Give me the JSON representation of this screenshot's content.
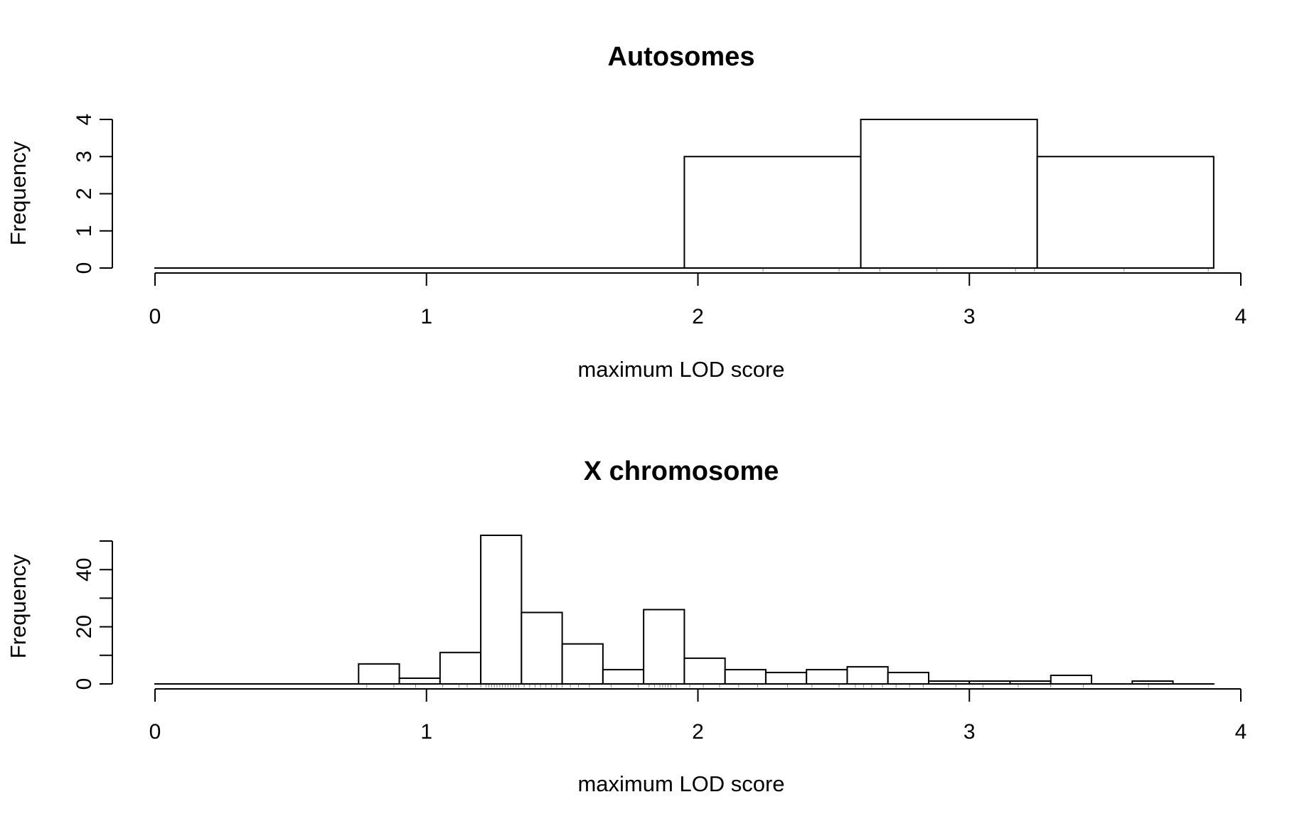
{
  "chart_data": [
    {
      "type": "bar",
      "title": "Autosomes",
      "xlabel": "maximum LOD score",
      "ylabel": "Frequency",
      "xlim": [
        0,
        4
      ],
      "ylim": [
        0,
        4
      ],
      "xticks": [
        0,
        1,
        2,
        3,
        4
      ],
      "yticks": [
        0,
        1,
        2,
        3,
        4
      ],
      "bin_edges": [
        0,
        0.65,
        1.3,
        1.95,
        2.6,
        3.25,
        3.9
      ],
      "values": [
        0,
        0,
        0,
        3,
        4,
        3
      ],
      "rug": [
        2.24,
        2.52,
        2.67,
        2.88,
        3.17,
        3.24,
        3.57,
        3.88
      ]
    },
    {
      "type": "bar",
      "title": "X chromosome",
      "xlabel": "maximum LOD score",
      "ylabel": "Frequency",
      "xlim": [
        0,
        4
      ],
      "ylim": [
        0,
        50
      ],
      "xticks": [
        0,
        1,
        2,
        3,
        4
      ],
      "yticks": [
        0,
        10,
        20,
        30,
        40,
        50
      ],
      "ytick_labels": [
        "0",
        "",
        "20",
        "",
        "40",
        ""
      ],
      "bin_edges": [
        0,
        0.15,
        0.3,
        0.45,
        0.6,
        0.75,
        0.9,
        1.05,
        1.2,
        1.35,
        1.5,
        1.65,
        1.8,
        1.95,
        2.1,
        2.25,
        2.4,
        2.55,
        2.7,
        2.85,
        3.0,
        3.15,
        3.3,
        3.45,
        3.6,
        3.75,
        3.9
      ],
      "values": [
        0,
        0,
        0,
        0,
        0,
        7,
        2,
        11,
        52,
        25,
        14,
        5,
        26,
        9,
        5,
        4,
        5,
        6,
        4,
        1,
        1,
        1,
        3,
        0,
        1,
        0
      ],
      "rug": [
        0.78,
        0.88,
        0.96,
        1.06,
        1.12,
        1.15,
        1.2,
        1.22,
        1.23,
        1.24,
        1.25,
        1.26,
        1.27,
        1.28,
        1.29,
        1.3,
        1.31,
        1.32,
        1.33,
        1.34,
        1.36,
        1.38,
        1.4,
        1.42,
        1.44,
        1.46,
        1.48,
        1.5,
        1.53,
        1.56,
        1.6,
        1.68,
        1.78,
        1.82,
        1.84,
        1.86,
        1.87,
        1.88,
        1.89,
        1.9,
        1.92,
        1.97,
        2.02,
        2.08,
        2.15,
        2.22,
        2.33,
        2.42,
        2.52,
        2.58,
        2.61,
        2.64,
        2.68,
        2.73,
        2.78,
        2.83,
        2.95,
        3.05,
        3.18,
        3.3,
        3.42,
        3.66
      ]
    }
  ]
}
